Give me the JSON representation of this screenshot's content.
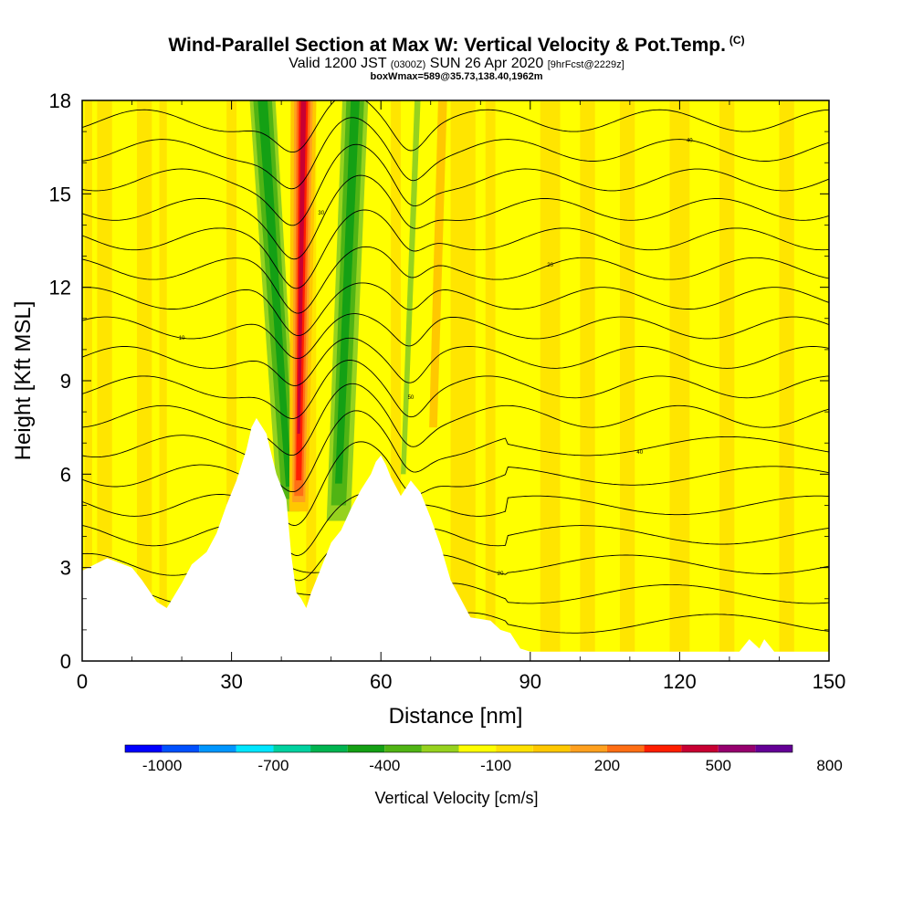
{
  "chart_data": {
    "type": "heatmap",
    "title": "Wind-Parallel Section at Max W: Vertical Velocity & Pot.Temp.",
    "title_mark": "(C)",
    "subtitle_valid": "Valid 1200 JST",
    "subtitle_zulu": "(0300Z)",
    "subtitle_date": "SUN 26 Apr 2020",
    "subtitle_fcst": "[9hrFcst@2229z]",
    "subtitle_box": "boxWmax=589@35.73,138.40,1962m",
    "xlabel": "Distance [nm]",
    "ylabel": "Height [Kft MSL]",
    "xlim": [
      0,
      150
    ],
    "ylim": [
      0,
      18
    ],
    "x_ticks": [
      "0",
      "30",
      "60",
      "90",
      "120",
      "150"
    ],
    "y_ticks": [
      "0",
      "3",
      "6",
      "9",
      "12",
      "15",
      "18"
    ],
    "colorbar": {
      "label": "Vertical Velocity [cm/s]",
      "tick_labels": [
        "-1000",
        "-700",
        "-400",
        "-100",
        "200",
        "500",
        "800"
      ],
      "colors": [
        "#0000ff",
        "#0050ff",
        "#0096ff",
        "#00e6ff",
        "#00d2a0",
        "#00b450",
        "#14a014",
        "#50b414",
        "#96d21e",
        "#ffff00",
        "#ffe100",
        "#ffc800",
        "#ffa01e",
        "#ff6e14",
        "#ff1e00",
        "#c80032",
        "#96006e",
        "#640096"
      ]
    },
    "terrain_kft": [
      [
        0,
        2.9
      ],
      [
        5,
        3.3
      ],
      [
        10,
        3.0
      ],
      [
        12,
        2.6
      ],
      [
        15,
        1.9
      ],
      [
        17,
        1.7
      ],
      [
        20,
        2.5
      ],
      [
        22,
        3.1
      ],
      [
        25,
        3.5
      ],
      [
        27,
        4.1
      ],
      [
        29,
        5.0
      ],
      [
        31,
        5.8
      ],
      [
        33,
        6.8
      ],
      [
        34,
        7.5
      ],
      [
        35,
        7.8
      ],
      [
        37,
        7.3
      ],
      [
        39,
        6.0
      ],
      [
        41,
        5.2
      ],
      [
        42,
        3.4
      ],
      [
        43,
        2.2
      ],
      [
        44,
        2.0
      ],
      [
        45,
        1.7
      ],
      [
        46,
        2.2
      ],
      [
        48,
        3.0
      ],
      [
        50,
        3.8
      ],
      [
        52,
        4.2
      ],
      [
        54,
        4.9
      ],
      [
        56,
        5.5
      ],
      [
        58,
        6.0
      ],
      [
        59,
        6.4
      ],
      [
        60,
        6.6
      ],
      [
        61,
        6.3
      ],
      [
        62,
        5.9
      ],
      [
        64,
        5.3
      ],
      [
        66,
        5.8
      ],
      [
        68,
        5.4
      ],
      [
        70,
        4.6
      ],
      [
        72,
        3.7
      ],
      [
        74,
        2.6
      ],
      [
        76,
        2.0
      ],
      [
        78,
        1.4
      ],
      [
        82,
        1.3
      ],
      [
        84,
        1.0
      ],
      [
        86,
        0.9
      ],
      [
        88,
        0.4
      ],
      [
        90,
        0.3
      ],
      [
        132,
        0.3
      ],
      [
        134,
        0.7
      ],
      [
        136,
        0.4
      ],
      [
        137,
        0.7
      ],
      [
        139,
        0.3
      ],
      [
        150,
        0.3
      ]
    ],
    "w_features": [
      {
        "type": "updraft",
        "x_base": 43.5,
        "x_top": 44.5,
        "z_base": 4.8,
        "peak_cms": 589
      },
      {
        "type": "downdraft",
        "x_base": 41.5,
        "x_top": 36.0,
        "z_base": 4.8,
        "min_cms": -400
      },
      {
        "type": "downdraft",
        "x_base": 51.5,
        "x_top": 55.0,
        "z_base": 4.5,
        "min_cms": -450
      }
    ],
    "theta_contours": {
      "count": 18,
      "label_values": [
        "10",
        "20",
        "30",
        "40",
        "50"
      ]
    }
  }
}
